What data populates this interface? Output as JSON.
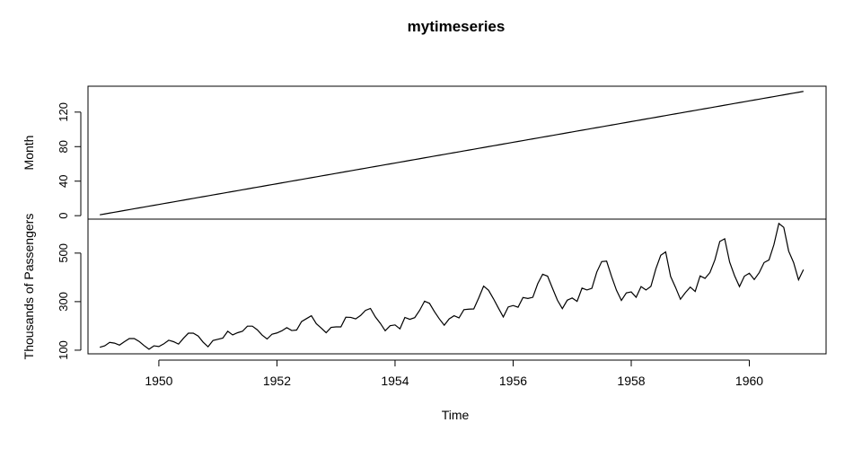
{
  "chart_data": {
    "type": "line",
    "title": "mytimeseries",
    "xlabel": "Time",
    "x_ticks": [
      1950,
      1952,
      1954,
      1956,
      1958,
      1960
    ],
    "xlim": [
      1948.8,
      1961.3
    ],
    "panels": [
      {
        "name": "Month",
        "ylabel": "Month",
        "ylim": [
          -4,
          150
        ],
        "y_ticks": [
          0,
          40,
          80,
          120
        ],
        "start": 1949.0,
        "step": 0.0833333,
        "values": [
          1,
          2,
          3,
          4,
          5,
          6,
          7,
          8,
          9,
          10,
          11,
          12,
          13,
          14,
          15,
          16,
          17,
          18,
          19,
          20,
          21,
          22,
          23,
          24,
          25,
          26,
          27,
          28,
          29,
          30,
          31,
          32,
          33,
          34,
          35,
          36,
          37,
          38,
          39,
          40,
          41,
          42,
          43,
          44,
          45,
          46,
          47,
          48,
          49,
          50,
          51,
          52,
          53,
          54,
          55,
          56,
          57,
          58,
          59,
          60,
          61,
          62,
          63,
          64,
          65,
          66,
          67,
          68,
          69,
          70,
          71,
          72,
          73,
          74,
          75,
          76,
          77,
          78,
          79,
          80,
          81,
          82,
          83,
          84,
          85,
          86,
          87,
          88,
          89,
          90,
          91,
          92,
          93,
          94,
          95,
          96,
          97,
          98,
          99,
          100,
          101,
          102,
          103,
          104,
          105,
          106,
          107,
          108,
          109,
          110,
          111,
          112,
          113,
          114,
          115,
          116,
          117,
          118,
          119,
          120,
          121,
          122,
          123,
          124,
          125,
          126,
          127,
          128,
          129,
          130,
          131,
          132,
          133,
          134,
          135,
          136,
          137,
          138,
          139,
          140,
          141,
          142,
          143,
          144
        ]
      },
      {
        "name": "Thousands of Passengers",
        "ylabel": "Thousands of Passengers",
        "ylim": [
          85,
          640
        ],
        "y_ticks": [
          100,
          300,
          500
        ],
        "start": 1949.0,
        "step": 0.0833333,
        "values": [
          112,
          118,
          132,
          129,
          121,
          135,
          148,
          148,
          136,
          119,
          104,
          118,
          115,
          126,
          141,
          135,
          125,
          149,
          170,
          170,
          158,
          133,
          114,
          140,
          145,
          150,
          178,
          163,
          172,
          178,
          199,
          199,
          184,
          162,
          146,
          166,
          171,
          180,
          193,
          181,
          183,
          218,
          230,
          242,
          209,
          191,
          172,
          194,
          196,
          196,
          236,
          235,
          229,
          243,
          264,
          272,
          237,
          211,
          180,
          201,
          204,
          188,
          235,
          227,
          234,
          264,
          302,
          293,
          259,
          229,
          203,
          229,
          242,
          233,
          267,
          269,
          270,
          315,
          364,
          347,
          312,
          274,
          237,
          278,
          284,
          277,
          317,
          313,
          318,
          374,
          413,
          405,
          355,
          306,
          271,
          306,
          315,
          301,
          356,
          348,
          355,
          422,
          465,
          467,
          404,
          347,
          305,
          336,
          340,
          318,
          362,
          348,
          363,
          435,
          491,
          505,
          404,
          359,
          310,
          337,
          360,
          342,
          406,
          396,
          420,
          472,
          548,
          559,
          463,
          407,
          362,
          405,
          417,
          391,
          419,
          461,
          472,
          535,
          622,
          606,
          508,
          461,
          390,
          432
        ]
      }
    ]
  }
}
